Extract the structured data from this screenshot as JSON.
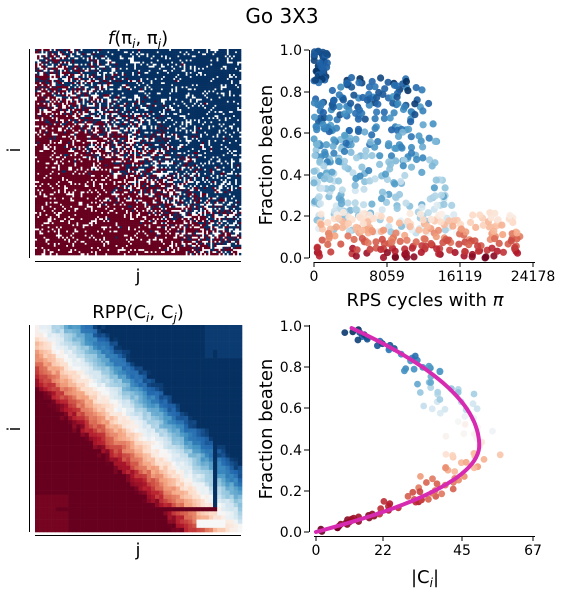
{
  "suptitle": "Go 3X3",
  "chart_data": [
    {
      "type": "heatmap",
      "title_fn": "f",
      "title_args": "(π",
      "title_sub_i": "i",
      "title_sep": ", π",
      "title_sub_j": "j",
      "title_close": ")",
      "xlabel": "j",
      "ylabel": "i",
      "size": 200,
      "colormap": "RdBu",
      "values": [
        -1,
        0,
        1
      ],
      "description_of_pattern": "binary matrix: red below the diagonal, blue above, sparse white noise"
    },
    {
      "type": "scatter",
      "xlabel_text": "RPS cycles with ",
      "xlabel_symbol": "π",
      "ylabel": "Fraction beaten",
      "xlim": [
        0,
        24178
      ],
      "ylim": [
        0,
        1.0
      ],
      "xticks": [
        "0",
        "8059",
        "16119",
        "24178"
      ],
      "yticks": [
        "0.0",
        "0.2",
        "0.4",
        "0.6",
        "0.8",
        "1.0"
      ],
      "colormap": "RdBu (by fraction beaten)",
      "n_points": 700
    },
    {
      "type": "heatmap",
      "title_fn": "RPP",
      "title_args": "(C",
      "title_sub_i": "i",
      "title_sep": ", C",
      "title_sub_j": "j",
      "title_close": ")",
      "xlabel": "j",
      "ylabel": "i",
      "size": 50,
      "colormap": "RdBu"
    },
    {
      "type": "scatter",
      "xlabel_text": "|C",
      "xlabel_sub": "i",
      "xlabel_close": "|",
      "ylabel": "Fraction beaten",
      "xlim": [
        0,
        67
      ],
      "ylim": [
        0,
        1.0
      ],
      "xticks": [
        "0",
        "22",
        "45",
        "67"
      ],
      "yticks": [
        "0.0",
        "0.2",
        "0.4",
        "0.6",
        "0.8",
        "1.0"
      ],
      "curve_color": "#d62bb0",
      "curve_peak": {
        "x": 50.4,
        "y": 0.42
      },
      "curve_ends": [
        {
          "x": 0,
          "y": 0.0
        },
        {
          "x": 11,
          "y": 0.99
        }
      ]
    }
  ],
  "colors": {
    "blue_dark": "#053061",
    "red_dark": "#67001f",
    "magenta": "#d62bb0"
  }
}
